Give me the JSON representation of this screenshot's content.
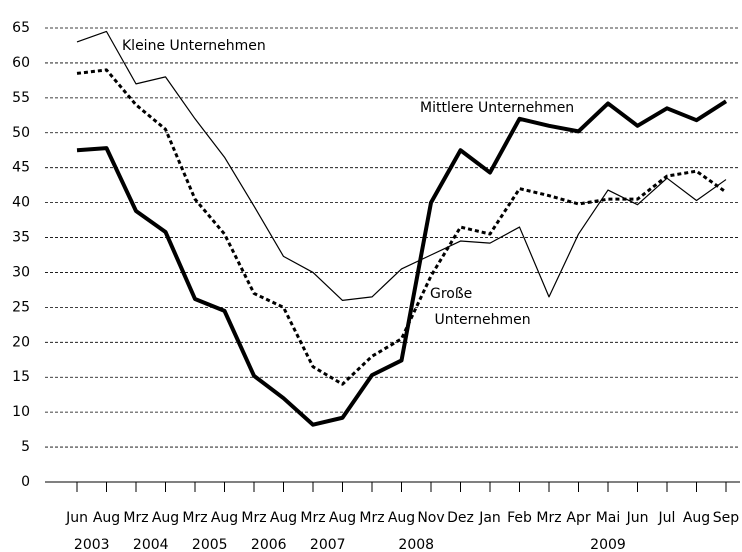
{
  "chart_data": {
    "type": "line",
    "categories": [
      "Jun",
      "Aug",
      "Mrz",
      "Aug",
      "Mrz",
      "Aug",
      "Mrz",
      "Aug",
      "Mrz",
      "Aug",
      "Mrz",
      "Aug",
      "Nov",
      "Dez",
      "Jan",
      "Feb",
      "Mrz",
      "Apr",
      "Mai",
      "Jun",
      "Jul",
      "Aug",
      "Sep"
    ],
    "category_groups": [
      {
        "name": "2003",
        "start": 0,
        "end": 1
      },
      {
        "name": "2004",
        "start": 2,
        "end": 3
      },
      {
        "name": "2005",
        "start": 4,
        "end": 5
      },
      {
        "name": "2006",
        "start": 6,
        "end": 7
      },
      {
        "name": "2007",
        "start": 8,
        "end": 9
      },
      {
        "name": "2008",
        "start": 10,
        "end": 13
      },
      {
        "name": "2009",
        "start": 14,
        "end": 22
      }
    ],
    "series": [
      {
        "name": "Kleine Unternehmen",
        "color": "#000000",
        "line_style": "solid",
        "line_width": 1.2,
        "values": [
          63,
          64.5,
          57,
          58,
          52,
          46.5,
          39.5,
          32.3,
          30,
          26,
          26.5,
          30.5,
          32.5,
          34.5,
          34.2,
          36.5,
          26.5,
          35.5,
          41.8,
          39.7,
          43.5,
          40.3,
          43.3
        ]
      },
      {
        "name": "Mittlere Unternehmen",
        "color": "#000000",
        "line_style": "dotted",
        "line_width": 3,
        "values": [
          58.5,
          59,
          54,
          50.5,
          40.5,
          35.5,
          27,
          25,
          16.5,
          14,
          18,
          20.5,
          29.5,
          36.5,
          35.5,
          42,
          41,
          39.8,
          40.5,
          40.5,
          43.8,
          44.5,
          41.5
        ]
      },
      {
        "name": "Große Unternehmen",
        "color": "#000000",
        "line_style": "solid",
        "line_width": 4,
        "values": [
          47.5,
          47.8,
          38.8,
          35.8,
          26.2,
          24.5,
          15.2,
          12,
          8.2,
          9.2,
          15.3,
          17.4,
          40,
          47.5,
          44.3,
          52,
          51,
          50.2,
          54.2,
          51,
          53.5,
          51.8,
          54.5
        ]
      }
    ],
    "ylim": [
      0,
      65
    ],
    "yticks": [
      0,
      5,
      10,
      15,
      20,
      25,
      30,
      35,
      40,
      45,
      50,
      55,
      60,
      65
    ],
    "grid": true
  }
}
